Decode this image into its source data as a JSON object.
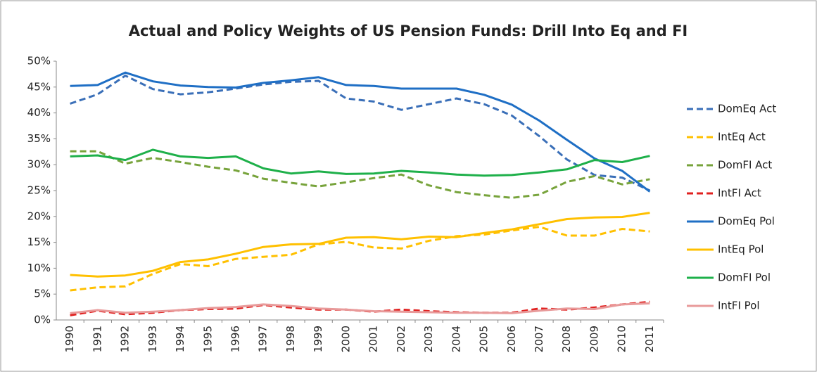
{
  "chart_data": {
    "type": "line",
    "title": "Actual and Policy Weights of US Pension Funds: Drill Into Eq and FI",
    "categories": [
      "1990",
      "1991",
      "1992",
      "1993",
      "1994",
      "1995",
      "1996",
      "1997",
      "1998",
      "1999",
      "2000",
      "2001",
      "2002",
      "2003",
      "2004",
      "2005",
      "2006",
      "2007",
      "2008",
      "2009",
      "2010",
      "2011"
    ],
    "ylim": [
      0,
      50
    ],
    "yticks": [
      {
        "value": 0,
        "label": "0%"
      },
      {
        "value": 5,
        "label": "5%"
      },
      {
        "value": 10,
        "label": "10%"
      },
      {
        "value": 15,
        "label": "15%"
      },
      {
        "value": 20,
        "label": "20%"
      },
      {
        "value": 25,
        "label": "25%"
      },
      {
        "value": 30,
        "label": "30%"
      },
      {
        "value": 35,
        "label": "35%"
      },
      {
        "value": 40,
        "label": "40%"
      },
      {
        "value": 45,
        "label": "45%"
      },
      {
        "value": 50,
        "label": "50%"
      }
    ],
    "grid": false,
    "legend": "right",
    "series": [
      {
        "name": "DomEq Act",
        "color": "#3a6fb8",
        "dashed": true,
        "values": [
          41.8,
          43.6,
          47.2,
          44.6,
          43.6,
          44.0,
          44.7,
          45.5,
          46.0,
          46.2,
          42.8,
          42.2,
          40.6,
          41.7,
          42.8,
          41.7,
          39.5,
          35.5,
          31.0,
          28.0,
          27.5,
          25.0
        ]
      },
      {
        "name": "IntEq Act",
        "color": "#ffc000",
        "dashed": true,
        "values": [
          5.7,
          6.3,
          6.5,
          8.9,
          10.8,
          10.4,
          11.8,
          12.2,
          12.6,
          14.6,
          15.1,
          14.0,
          13.8,
          15.3,
          16.2,
          16.5,
          17.3,
          18.0,
          16.3,
          16.3,
          17.6,
          17.1
        ]
      },
      {
        "name": "DomFI Act",
        "color": "#77a33b",
        "dashed": true,
        "values": [
          32.6,
          32.6,
          30.2,
          31.3,
          30.5,
          29.6,
          28.9,
          27.3,
          26.5,
          25.8,
          26.6,
          27.4,
          28.1,
          26.0,
          24.7,
          24.1,
          23.6,
          24.2,
          26.7,
          27.8,
          26.2,
          27.2
        ]
      },
      {
        "name": "IntFI Act",
        "color": "#e0201f",
        "dashed": true,
        "values": [
          0.9,
          1.8,
          1.1,
          1.4,
          1.9,
          2.1,
          2.2,
          2.9,
          2.4,
          2.0,
          2.0,
          1.6,
          2.0,
          1.7,
          1.5,
          1.4,
          1.4,
          2.2,
          2.0,
          2.4,
          3.0,
          3.5
        ]
      },
      {
        "name": "DomEq Pol",
        "color": "#1f6fc5",
        "dashed": false,
        "values": [
          45.2,
          45.4,
          47.8,
          46.1,
          45.3,
          45.0,
          44.9,
          45.8,
          46.3,
          46.9,
          45.4,
          45.2,
          44.7,
          44.7,
          44.7,
          43.5,
          41.6,
          38.5,
          34.8,
          31.2,
          28.8,
          24.8
        ]
      },
      {
        "name": "IntEq Pol",
        "color": "#ffc000",
        "dashed": false,
        "values": [
          8.7,
          8.4,
          8.6,
          9.5,
          11.2,
          11.7,
          12.8,
          14.1,
          14.6,
          14.7,
          15.9,
          16.0,
          15.6,
          16.1,
          16.0,
          16.8,
          17.5,
          18.5,
          19.5,
          19.8,
          19.9,
          20.7
        ]
      },
      {
        "name": "DomFI Pol",
        "color": "#1eb04a",
        "dashed": false,
        "values": [
          31.6,
          31.8,
          30.9,
          32.9,
          31.6,
          31.3,
          31.6,
          29.3,
          28.3,
          28.7,
          28.2,
          28.3,
          28.8,
          28.5,
          28.1,
          27.9,
          28.0,
          28.5,
          29.1,
          30.9,
          30.5,
          31.7
        ]
      },
      {
        "name": "IntFI Pol",
        "color": "#e89a9a",
        "dashed": false,
        "values": [
          1.3,
          1.9,
          1.4,
          1.6,
          1.9,
          2.3,
          2.5,
          3.0,
          2.7,
          2.2,
          2.0,
          1.7,
          1.6,
          1.5,
          1.4,
          1.4,
          1.3,
          1.8,
          2.2,
          2.1,
          3.0,
          3.2
        ]
      }
    ]
  }
}
